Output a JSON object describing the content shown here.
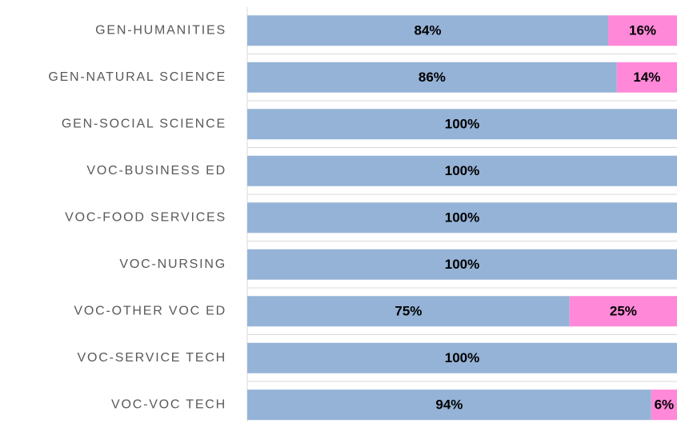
{
  "chart_data": {
    "type": "stacked-barh",
    "categories": [
      "GEN-HUMANITIES",
      "GEN-NATURAL SCIENCE",
      "GEN-SOCIAL SCIENCE",
      "VOC-BUSINESS ED",
      "VOC-FOOD SERVICES",
      "VOC-NURSING",
      "VOC-OTHER VOC ED",
      "VOC-SERVICE TECH",
      "VOC-VOC TECH"
    ],
    "series": [
      {
        "color": "#95b3d7",
        "values": [
          84,
          86,
          100,
          100,
          100,
          100,
          75,
          100,
          94
        ],
        "value_labels": [
          "84%",
          "86%",
          "100%",
          "100%",
          "100%",
          "100%",
          "75%",
          "100%",
          "94%"
        ]
      },
      {
        "color": "#ff88d8",
        "values": [
          16,
          14,
          0,
          0,
          0,
          0,
          25,
          0,
          6
        ],
        "value_labels": [
          "16%",
          "14%",
          null,
          null,
          null,
          null,
          "25%",
          null,
          "6%"
        ]
      }
    ],
    "xlim": [
      0,
      100
    ]
  }
}
